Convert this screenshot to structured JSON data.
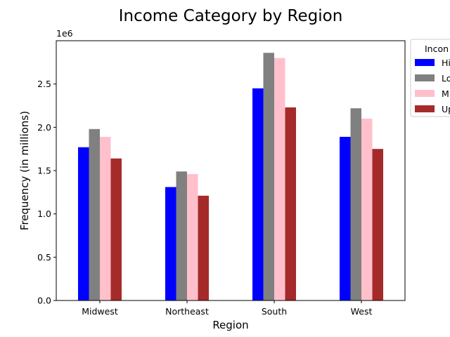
{
  "chart_data": {
    "type": "bar",
    "title": "Income Category by Region",
    "xlabel": "Region",
    "ylabel": "Frequency (in millions)",
    "offset_text": "1e6",
    "categories": [
      "Midwest",
      "Northeast",
      "South",
      "West"
    ],
    "ylim": [
      0,
      3000000
    ],
    "yticks": [
      0,
      500000,
      1000000,
      1500000,
      2000000,
      2500000
    ],
    "ytick_labels": [
      "0.0",
      "0.5",
      "1.0",
      "1.5",
      "2.0",
      "2.5"
    ],
    "legend": {
      "title": "Incon",
      "placement": "outside-top-right"
    },
    "series": [
      {
        "name": "Hi",
        "color": "#0000ff",
        "values": [
          1770000,
          1310000,
          2450000,
          1890000
        ]
      },
      {
        "name": "Lo",
        "color": "#808080",
        "values": [
          1980000,
          1490000,
          2860000,
          2220000
        ]
      },
      {
        "name": "M",
        "color": "#ffc0cb",
        "values": [
          1890000,
          1460000,
          2800000,
          2100000
        ]
      },
      {
        "name": "Up",
        "color": "#a52a2a",
        "values": [
          1640000,
          1210000,
          2230000,
          1750000
        ]
      }
    ],
    "grid": false
  }
}
